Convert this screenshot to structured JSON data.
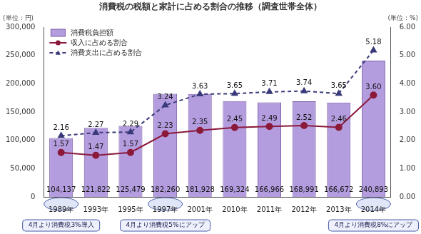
{
  "chart_data": {
    "type": "bar",
    "title": "消費税の税額と家計に占める割合の推移（調査世帯全体）",
    "ylabel": "(単位：円)",
    "y2label": "(単位：%)",
    "categories": [
      "1989年",
      "1993年",
      "1995年",
      "1997年",
      "2001年",
      "2010年",
      "2011年",
      "2012年",
      "2013年",
      "2014年"
    ],
    "series": [
      {
        "name": "消費税負担額",
        "type": "bar",
        "color": "#b49ddf",
        "values": [
          104137,
          121822,
          125479,
          182260,
          181928,
          169324,
          166966,
          168991,
          166672,
          240893
        ],
        "value_labels": [
          "104,137",
          "121,822",
          "125,479",
          "182,260",
          "181,928",
          "169,324",
          "166,966",
          "168,991",
          "166,672",
          "240,893"
        ]
      },
      {
        "name": "収入に占める割合",
        "type": "line",
        "axis": "y2",
        "color": "#8b1a3a",
        "marker": "circle",
        "line_style": "solid",
        "values": [
          1.57,
          1.47,
          1.57,
          2.23,
          2.35,
          2.45,
          2.49,
          2.52,
          2.46,
          3.6
        ],
        "value_labels": [
          "1.57",
          "1.47",
          "1.57",
          "2.23",
          "2.35",
          "2.45",
          "2.49",
          "2.52",
          "2.46",
          "3.60"
        ]
      },
      {
        "name": "消費支出に占める割合",
        "type": "line",
        "axis": "y2",
        "color": "#3a3a7a",
        "marker": "triangle",
        "line_style": "dashed",
        "values": [
          2.16,
          2.27,
          2.29,
          3.24,
          3.63,
          3.65,
          3.71,
          3.74,
          3.65,
          5.18
        ],
        "value_labels": [
          "2.16",
          "2.27",
          "2.29",
          "3.24",
          "3.63",
          "3.65",
          "3.71",
          "3.74",
          "3.65",
          "5.18"
        ]
      }
    ],
    "ylim": [
      0,
      300000
    ],
    "yticks": [
      0,
      {
        "value": 50000,
        "label": "50,000"
      },
      {
        "value": 100000,
        "label": "100,000"
      },
      {
        "value": 150000,
        "label": "150,000"
      },
      {
        "value": 200000,
        "label": "200,000"
      },
      {
        "value": 250000,
        "label": "250,000"
      },
      {
        "value": 300000,
        "label": "300,000"
      }
    ],
    "y2lim": [
      0,
      6
    ],
    "y2ticks": [
      {
        "value": 0,
        "label": "0.00"
      },
      {
        "value": 1,
        "label": "1.00"
      },
      {
        "value": 2,
        "label": "2.00"
      },
      {
        "value": 3,
        "label": "3.00"
      },
      {
        "value": 4,
        "label": "4.00"
      },
      {
        "value": 5,
        "label": "5.00"
      },
      {
        "value": 6,
        "label": "6.00"
      }
    ],
    "grid": false,
    "legend": "top-left",
    "data_labels": true,
    "annotations": [
      {
        "text": "4月より消費税3%導入",
        "category": "1989年"
      },
      {
        "text": "4月より消費税5%にアップ",
        "category": "1997年"
      },
      {
        "text": "4月より消費税8%にアップ",
        "category": "2014年"
      }
    ]
  }
}
